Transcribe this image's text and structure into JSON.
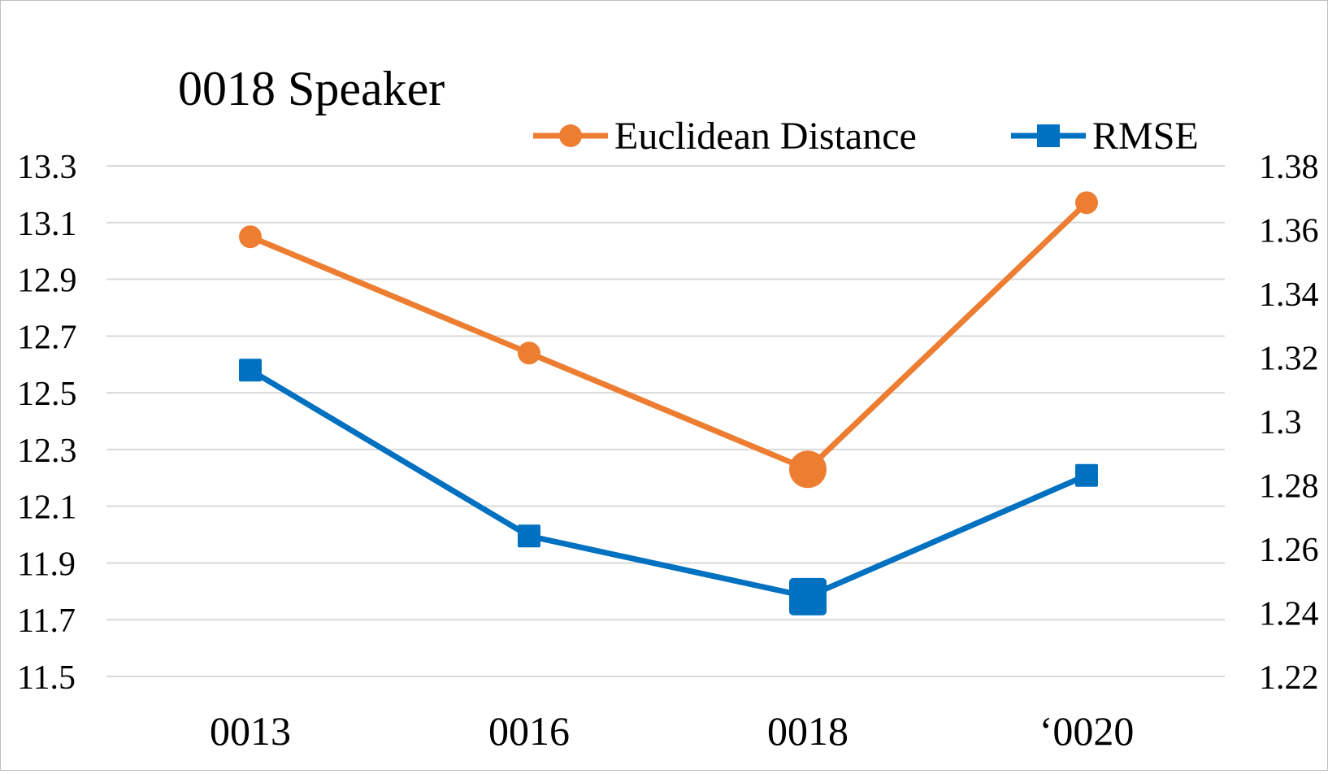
{
  "chart_data": {
    "type": "line",
    "title": "0018 Speaker",
    "categories": [
      "0013",
      "0016",
      "0018",
      "‘0020"
    ],
    "grid": true,
    "legend_position": "top-right",
    "y_left": {
      "ylim": [
        11.5,
        13.3
      ],
      "ticks": [
        "13.3",
        "13.1",
        "12.9",
        "12.7",
        "12.5",
        "12.3",
        "12.1",
        "11.9",
        "11.7",
        "11.5"
      ]
    },
    "y_right": {
      "ylim": [
        1.22,
        1.38
      ],
      "ticks": [
        "1.38",
        "1.36",
        "1.34",
        "1.32",
        "1.3",
        "1.28",
        "1.26",
        "1.24",
        "1.22"
      ]
    },
    "series": [
      {
        "name": "Euclidean Distance",
        "axis": "left",
        "color": "#ED7D31",
        "marker": "circle",
        "values": [
          13.05,
          12.64,
          12.23,
          13.17
        ],
        "highlight_index": 2
      },
      {
        "name": "RMSE",
        "axis": "right",
        "color": "#0070C0",
        "marker": "square",
        "values": [
          1.316,
          1.264,
          1.245,
          1.283
        ],
        "highlight_index": 2
      }
    ]
  }
}
